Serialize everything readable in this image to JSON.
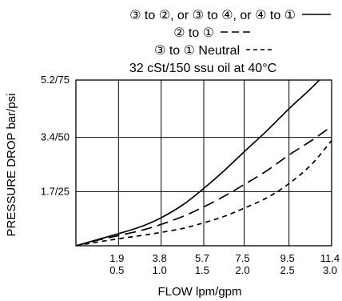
{
  "chart_data": {
    "type": "line",
    "title": "",
    "legend": [
      {
        "text": "③ to ②, or ③ to ④, or ④ to ①",
        "style": "solid"
      },
      {
        "text": "② to ①",
        "style": "long-dash"
      },
      {
        "text": "③ to ① Neutral",
        "style": "short-dash"
      }
    ],
    "condition": "32 cSt/150 ssu oil at 40°C",
    "xlabel": "FLOW lpm/gpm",
    "ylabel": "PRESSURE DROP bar/psi",
    "xlim": [
      0,
      11.4
    ],
    "ylim": [
      0,
      5.2
    ],
    "x_ticks": [
      {
        "value": 1.9,
        "primary": "1.9",
        "secondary": "0.5"
      },
      {
        "value": 3.8,
        "primary": "3.8",
        "secondary": "1.0"
      },
      {
        "value": 5.7,
        "primary": "5.7",
        "secondary": "1.5"
      },
      {
        "value": 7.5,
        "primary": "7.5",
        "secondary": "2.0"
      },
      {
        "value": 9.5,
        "primary": "9.5",
        "secondary": "2.5"
      },
      {
        "value": 11.4,
        "primary": "11.4",
        "secondary": "3.0"
      }
    ],
    "y_ticks": [
      {
        "value": 1.7,
        "label": "1.7/25"
      },
      {
        "value": 3.4,
        "label": "3.4/50"
      },
      {
        "value": 5.2,
        "label": "5.2/75"
      }
    ],
    "grid": true,
    "series": [
      {
        "name": "③ to ②, or ③ to ④, or ④ to ①",
        "style": "solid",
        "color": "#000000",
        "x": [
          0,
          1.0,
          1.9,
          2.9,
          3.8,
          4.8,
          5.7,
          6.6,
          7.5,
          8.5,
          9.5,
          10.5,
          11.4
        ],
        "y": [
          0,
          0.2,
          0.38,
          0.6,
          0.88,
          1.3,
          1.8,
          2.35,
          2.95,
          3.6,
          4.3,
          4.95,
          5.6
        ]
      },
      {
        "name": "② to ①",
        "style": "long-dash",
        "color": "#000000",
        "x": [
          0,
          1.0,
          1.9,
          2.9,
          3.8,
          4.8,
          5.7,
          6.6,
          7.5,
          8.5,
          9.5,
          10.5,
          11.4
        ],
        "y": [
          0,
          0.18,
          0.32,
          0.48,
          0.67,
          0.93,
          1.22,
          1.55,
          1.92,
          2.35,
          2.85,
          3.3,
          3.75
        ]
      },
      {
        "name": "③ to ① Neutral",
        "style": "short-dash",
        "color": "#000000",
        "x": [
          0,
          1.0,
          1.9,
          2.9,
          3.8,
          4.8,
          5.7,
          6.6,
          7.5,
          8.5,
          9.5,
          10.5,
          11.4
        ],
        "y": [
          0,
          0.12,
          0.22,
          0.32,
          0.42,
          0.55,
          0.72,
          0.92,
          1.18,
          1.5,
          1.95,
          2.55,
          3.3
        ]
      }
    ]
  }
}
